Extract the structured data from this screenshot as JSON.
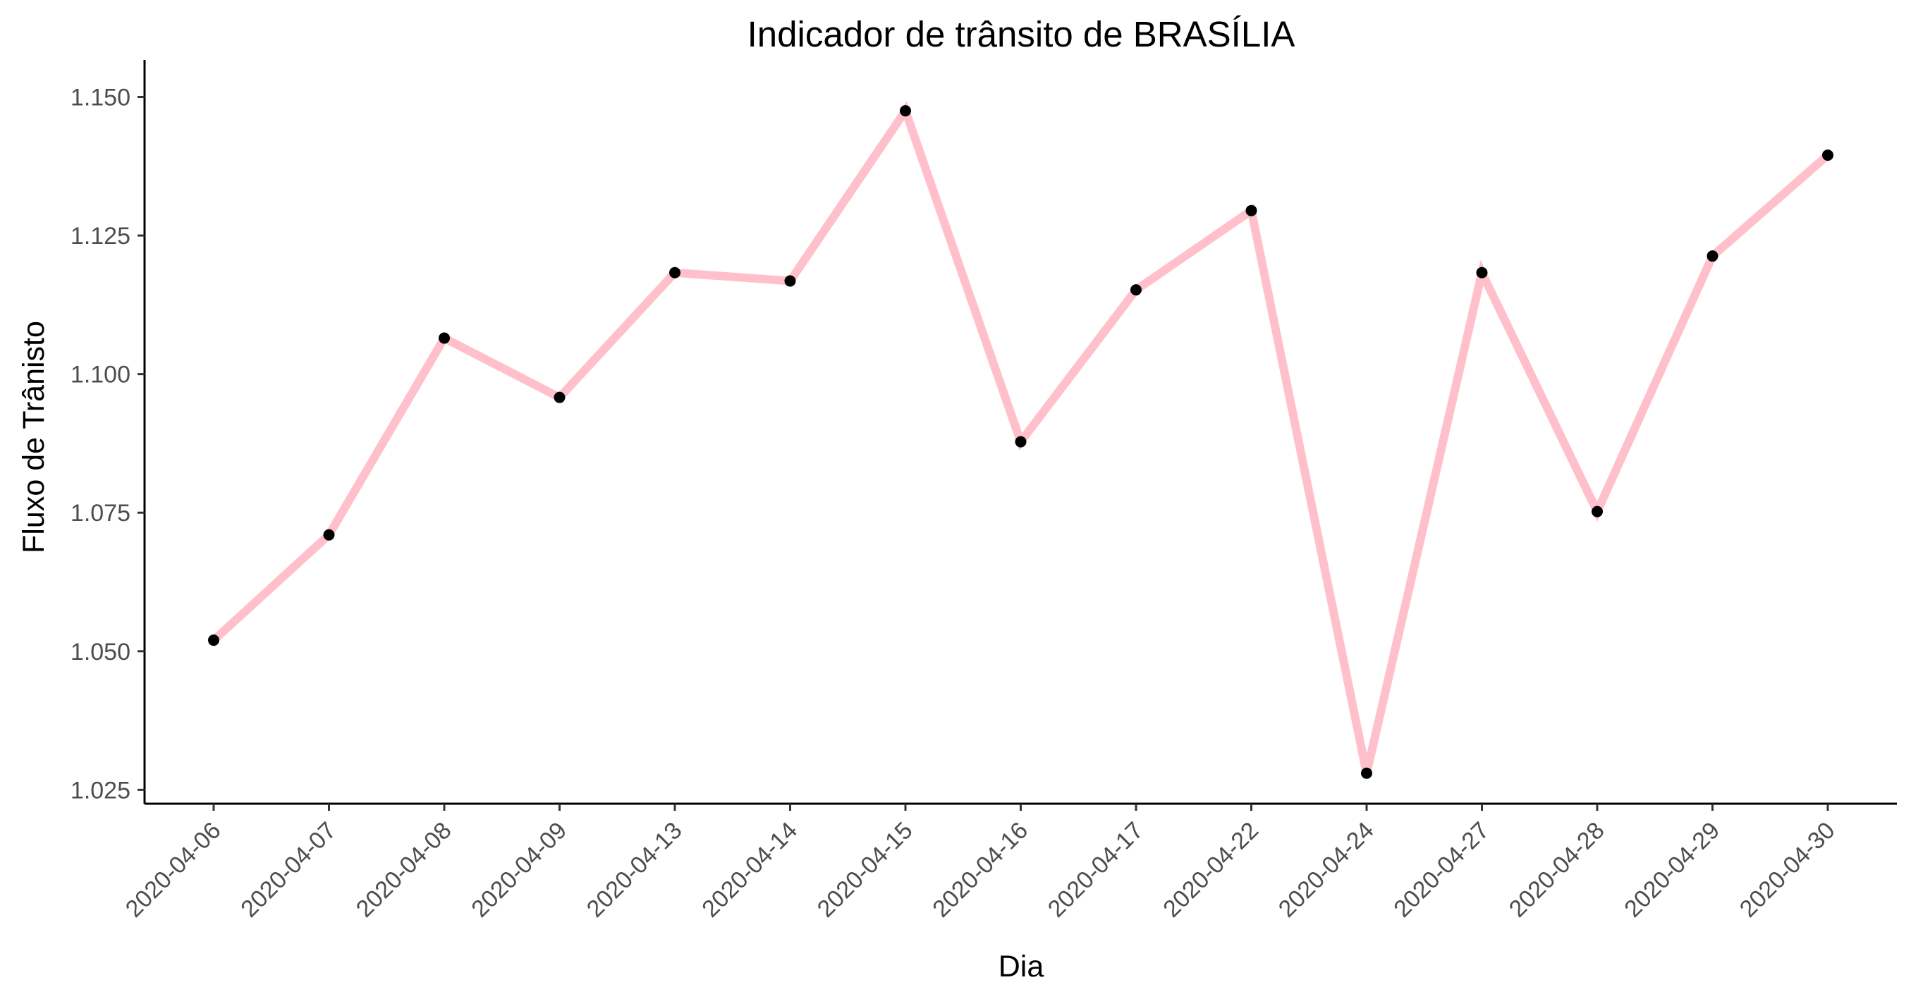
{
  "chart_data": {
    "type": "line",
    "title": "Indicador de trânsito de BRASÍLIA",
    "xlabel": "Dia",
    "ylabel": "Fluxo de Trânisto",
    "categories": [
      "2020-04-06",
      "2020-04-07",
      "2020-04-08",
      "2020-04-09",
      "2020-04-13",
      "2020-04-14",
      "2020-04-15",
      "2020-04-16",
      "2020-04-17",
      "2020-04-22",
      "2020-04-24",
      "2020-04-27",
      "2020-04-28",
      "2020-04-29",
      "2020-04-30"
    ],
    "series": [
      {
        "values": [
          1.052,
          1.071,
          1.1065,
          1.0958,
          1.1183,
          1.1168,
          1.1475,
          1.0878,
          1.1152,
          1.1295,
          1.028,
          1.1183,
          1.0752,
          1.1213,
          1.1395
        ]
      }
    ],
    "ylim": [
      1.0225,
      1.1535
    ],
    "yticks": [
      1.025,
      1.05,
      1.075,
      1.1,
      1.125,
      1.15
    ],
    "ytick_labels": [
      "1.025",
      "1.050",
      "1.075",
      "1.100",
      "1.125",
      "1.150"
    ],
    "grid": false,
    "colors": {
      "line": "#ffc0cb",
      "point": "#000000"
    }
  }
}
